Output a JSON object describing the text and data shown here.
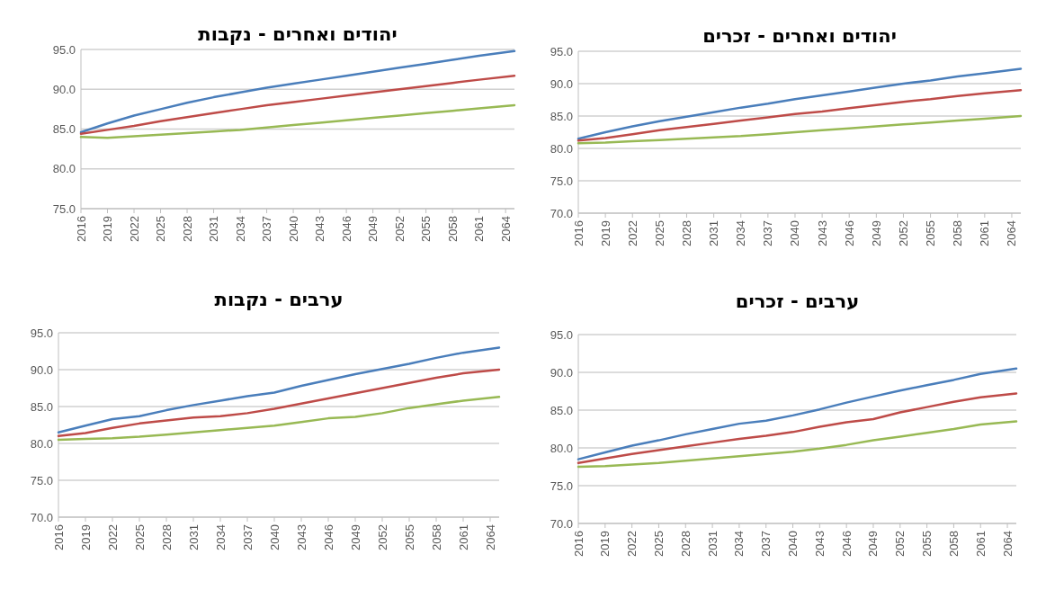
{
  "chart_data": [
    {
      "type": "line",
      "title": "יהודים ואחרים - נקבות",
      "x": [
        2016,
        2019,
        2022,
        2025,
        2028,
        2031,
        2034,
        2037,
        2040,
        2043,
        2046,
        2049,
        2052,
        2055,
        2058,
        2061,
        2065
      ],
      "xlim": [
        2016,
        2065
      ],
      "ylim": [
        75,
        95
      ],
      "grid": "y",
      "xticks": [
        2016,
        2019,
        2022,
        2025,
        2028,
        2031,
        2034,
        2037,
        2040,
        2043,
        2046,
        2049,
        2052,
        2055,
        2058,
        2061,
        2064
      ],
      "yticks": [
        {
          "value": 75,
          "label": "75.0"
        },
        {
          "value": 80,
          "label": "80.0"
        },
        {
          "value": 85,
          "label": "85.0"
        },
        {
          "value": 90,
          "label": "90.0"
        },
        {
          "value": 95,
          "label": "95.0"
        }
      ],
      "series": [
        {
          "color": "#4a7ebb",
          "values": [
            84.6,
            85.7,
            86.7,
            87.5,
            88.3,
            89.0,
            89.6,
            90.2,
            90.7,
            91.2,
            91.7,
            92.2,
            92.7,
            93.2,
            93.7,
            94.2,
            94.8
          ]
        },
        {
          "color": "#be4b48",
          "values": [
            84.4,
            84.9,
            85.4,
            86.0,
            86.5,
            87.0,
            87.5,
            88.0,
            88.4,
            88.8,
            89.2,
            89.6,
            90.0,
            90.4,
            90.8,
            91.2,
            91.7
          ]
        },
        {
          "color": "#98b954",
          "values": [
            84.0,
            83.9,
            84.1,
            84.3,
            84.5,
            84.7,
            84.9,
            85.2,
            85.5,
            85.8,
            86.1,
            86.4,
            86.7,
            87.0,
            87.3,
            87.6,
            88.0
          ]
        }
      ]
    },
    {
      "type": "line",
      "title": "יהודים ואחרים - זכרים",
      "x": [
        2016,
        2019,
        2022,
        2025,
        2028,
        2031,
        2034,
        2037,
        2040,
        2043,
        2046,
        2049,
        2052,
        2055,
        2058,
        2061,
        2065
      ],
      "xlim": [
        2016,
        2065
      ],
      "ylim": [
        70,
        95
      ],
      "grid": "y",
      "xticks": [
        2016,
        2019,
        2022,
        2025,
        2028,
        2031,
        2034,
        2037,
        2040,
        2043,
        2046,
        2049,
        2052,
        2055,
        2058,
        2061,
        2064
      ],
      "yticks": [
        {
          "value": 70,
          "label": "70.0"
        },
        {
          "value": 75,
          "label": "75.0"
        },
        {
          "value": 80,
          "label": "80.0"
        },
        {
          "value": 85,
          "label": "85.0"
        },
        {
          "value": 90,
          "label": "90.0"
        },
        {
          "value": 95,
          "label": "95.0"
        }
      ],
      "series": [
        {
          "color": "#4a7ebb",
          "values": [
            81.5,
            82.5,
            83.4,
            84.2,
            84.9,
            85.6,
            86.3,
            86.9,
            87.6,
            88.2,
            88.8,
            89.4,
            90.0,
            90.5,
            91.1,
            91.6,
            92.3
          ]
        },
        {
          "color": "#be4b48",
          "values": [
            81.2,
            81.6,
            82.2,
            82.8,
            83.3,
            83.8,
            84.3,
            84.8,
            85.3,
            85.7,
            86.2,
            86.7,
            87.2,
            87.6,
            88.1,
            88.5,
            89.0
          ]
        },
        {
          "color": "#98b954",
          "values": [
            80.8,
            80.9,
            81.1,
            81.3,
            81.5,
            81.7,
            81.9,
            82.2,
            82.5,
            82.8,
            83.1,
            83.4,
            83.7,
            84.0,
            84.3,
            84.6,
            85.0
          ]
        }
      ]
    },
    {
      "type": "line",
      "title": "ערבים - נקבות",
      "x": [
        2016,
        2019,
        2022,
        2025,
        2028,
        2031,
        2034,
        2037,
        2040,
        2043,
        2046,
        2049,
        2052,
        2055,
        2058,
        2061,
        2065
      ],
      "xlim": [
        2016,
        2065
      ],
      "ylim": [
        70,
        95
      ],
      "grid": "y",
      "xticks": [
        2016,
        2019,
        2022,
        2025,
        2028,
        2031,
        2034,
        2037,
        2040,
        2043,
        2046,
        2049,
        2052,
        2055,
        2058,
        2061,
        2064
      ],
      "yticks": [
        {
          "value": 70,
          "label": "70.0"
        },
        {
          "value": 75,
          "label": "75.0"
        },
        {
          "value": 80,
          "label": "80.0"
        },
        {
          "value": 85,
          "label": "85.0"
        },
        {
          "value": 90,
          "label": "90.0"
        },
        {
          "value": 95,
          "label": "95.0"
        }
      ],
      "series": [
        {
          "color": "#4a7ebb",
          "values": [
            81.5,
            82.4,
            83.3,
            83.7,
            84.5,
            85.2,
            85.8,
            86.4,
            86.9,
            87.8,
            88.6,
            89.4,
            90.1,
            90.8,
            91.6,
            92.3,
            93.0
          ]
        },
        {
          "color": "#be4b48",
          "values": [
            81.0,
            81.4,
            82.1,
            82.7,
            83.1,
            83.5,
            83.7,
            84.1,
            84.7,
            85.4,
            86.1,
            86.8,
            87.5,
            88.2,
            88.9,
            89.5,
            90.0
          ]
        },
        {
          "color": "#98b954",
          "values": [
            80.5,
            80.6,
            80.7,
            80.9,
            81.2,
            81.5,
            81.8,
            82.1,
            82.4,
            82.9,
            83.4,
            83.6,
            84.1,
            84.8,
            85.3,
            85.8,
            86.3
          ]
        }
      ]
    },
    {
      "type": "line",
      "title": "ערבים - זכרים",
      "x": [
        2016,
        2019,
        2022,
        2025,
        2028,
        2031,
        2034,
        2037,
        2040,
        2043,
        2046,
        2049,
        2052,
        2055,
        2058,
        2061,
        2065
      ],
      "xlim": [
        2016,
        2065
      ],
      "ylim": [
        70,
        95
      ],
      "grid": "y",
      "xticks": [
        2016,
        2019,
        2022,
        2025,
        2028,
        2031,
        2034,
        2037,
        2040,
        2043,
        2046,
        2049,
        2052,
        2055,
        2058,
        2061,
        2064
      ],
      "yticks": [
        {
          "value": 70,
          "label": "70.0"
        },
        {
          "value": 75,
          "label": "75.0"
        },
        {
          "value": 80,
          "label": "80.0"
        },
        {
          "value": 85,
          "label": "85.0"
        },
        {
          "value": 90,
          "label": "90.0"
        },
        {
          "value": 95,
          "label": "95.0"
        }
      ],
      "series": [
        {
          "color": "#4a7ebb",
          "values": [
            78.5,
            79.4,
            80.3,
            81.0,
            81.8,
            82.5,
            83.2,
            83.6,
            84.3,
            85.1,
            86.0,
            86.8,
            87.6,
            88.3,
            89.0,
            89.8,
            90.5
          ]
        },
        {
          "color": "#be4b48",
          "values": [
            78.0,
            78.6,
            79.2,
            79.7,
            80.2,
            80.7,
            81.2,
            81.6,
            82.1,
            82.8,
            83.4,
            83.8,
            84.7,
            85.4,
            86.1,
            86.7,
            87.2
          ]
        },
        {
          "color": "#98b954",
          "values": [
            77.5,
            77.6,
            77.8,
            78.0,
            78.3,
            78.6,
            78.9,
            79.2,
            79.5,
            79.9,
            80.4,
            81.0,
            81.5,
            82.0,
            82.5,
            83.1,
            83.5
          ]
        }
      ]
    }
  ]
}
